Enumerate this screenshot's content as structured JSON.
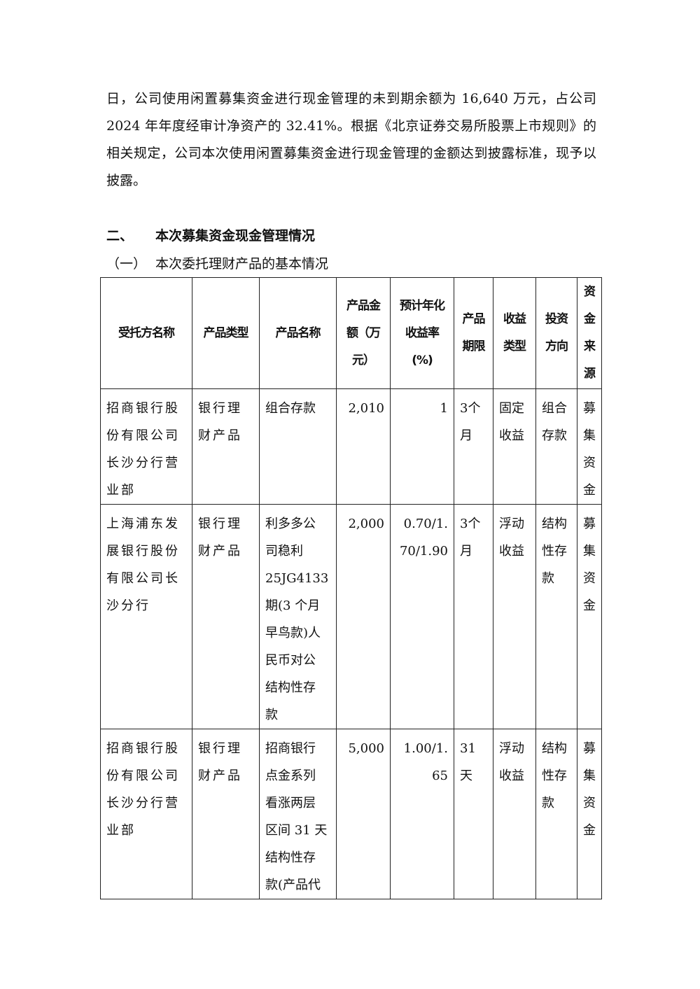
{
  "paragraph": "日，公司使用闲置募集资金进行现金管理的未到期余额为 16,640 万元，占公司 2024 年年度经审计净资产的 32.41%。根据《北京证券交易所股票上市规则》的相关规定，公司本次使用闲置募集资金进行现金管理的金额达到披露标准，现予以披露。",
  "section": {
    "number": "二、",
    "title": "本次募集资金现金管理情况"
  },
  "subsection": {
    "number": "（一）",
    "title": "本次委托理财产品的基本情况"
  },
  "table": {
    "headers": [
      "受托方名称",
      "产品类型",
      "产品名称",
      "产品金\n额（万\n元）",
      "预计年化\n收益率\n(%)",
      "产品\n期限",
      "收益\n类型",
      "投资\n方向",
      "资\n金\n来\n源"
    ],
    "rows": [
      [
        "招商银行股\n份有限公司\n长沙分行营\n业部",
        "银行理\n财产品",
        "组合存款",
        "2,010",
        "1",
        "3个\n月",
        "固定\n收益",
        "组合\n存款",
        "募\n集\n资\n金"
      ],
      [
        "上海浦东发\n展银行股份\n有限公司长\n沙分行",
        "银行理\n财产品",
        "利多多公\n司稳利\n25JG4133\n期(3 个月\n早鸟款)人\n民币对公\n结构性存\n款",
        "2,000",
        "0.70/1.\n70/1.90",
        "3个\n月",
        "浮动\n收益",
        "结构\n性存\n款",
        "募\n集\n资\n金"
      ],
      [
        "招商银行股\n份有限公司\n长沙分行营\n业部",
        "银行理\n财产品",
        "招商银行\n点金系列\n看涨两层\n区间 31 天\n结构性存\n款(产品代",
        "5,000",
        "1.00/1.\n65",
        "31\n天",
        "浮动\n收益",
        "结构\n性存\n款",
        "募\n集\n资\n金"
      ]
    ]
  }
}
